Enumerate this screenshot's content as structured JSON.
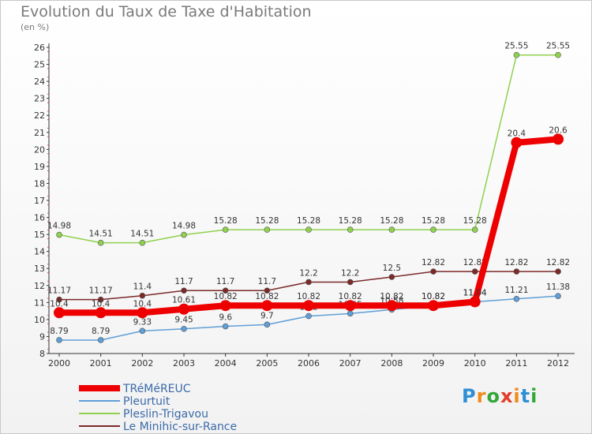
{
  "title": "Evolution du Taux de Taxe d'Habitation",
  "subtitle": "(en %)",
  "brand": {
    "text": "Proxiti",
    "colors": [
      "#2f8fd6",
      "#f08a1c",
      "#35a63a",
      "#e23d28",
      "#f08a1c",
      "#2f8fd6",
      "#35a63a"
    ]
  },
  "chart_data": {
    "type": "line",
    "x": [
      "2000",
      "2001",
      "2002",
      "2003",
      "2004",
      "2005",
      "2006",
      "2007",
      "2008",
      "2009",
      "2010",
      "2011",
      "2012"
    ],
    "yticks": [
      "8",
      "9",
      "10",
      "11",
      "12",
      "13",
      "14",
      "15",
      "16",
      "17",
      "18",
      "19",
      "20",
      "21",
      "22",
      "23",
      "24",
      "25",
      "26"
    ],
    "ylim": [
      8,
      26
    ],
    "grid": false,
    "legend_position": "bottom-left",
    "series": [
      {
        "name": "Pleslin-Trigavou",
        "color": "#8fd14f",
        "values": [
          14.98,
          14.51,
          14.51,
          14.98,
          15.28,
          15.28,
          15.28,
          15.28,
          15.28,
          15.28,
          15.28,
          25.55,
          25.55
        ],
        "labels": [
          "14.98",
          "14.51",
          "14.51",
          "14.98",
          "15.28",
          "15.28",
          "15.28",
          "15.28",
          "15.28",
          "15.28",
          "15.28",
          "25.55",
          "25.55"
        ]
      },
      {
        "name": "Le Minihic-sur-Rance",
        "color": "#7b2a2a",
        "values": [
          11.17,
          11.17,
          11.4,
          11.7,
          11.7,
          11.7,
          12.2,
          12.2,
          12.5,
          12.82,
          12.82,
          12.82,
          12.82
        ],
        "labels": [
          "11.17",
          "11.17",
          "11.4",
          "11.7",
          "11.7",
          "11.7",
          "12.2",
          "12.2",
          "12.5",
          "12.82",
          "12.82",
          "12.82",
          "12.82"
        ]
      },
      {
        "name": "Pleurtuit",
        "color": "#5f9fd6",
        "values": [
          8.79,
          8.79,
          9.33,
          9.45,
          9.6,
          9.7,
          10.2,
          10.35,
          10.58,
          10.82,
          11.04,
          11.21,
          11.38
        ],
        "labels": [
          "8.79",
          "8.79",
          "9.33",
          "9.45",
          "9.6",
          "9.7",
          "10.2",
          "10.35",
          "10.58",
          "10.82",
          "11.04",
          "11.21",
          "11.38"
        ]
      },
      {
        "name": "TRéMéREUC",
        "color": "#ee0000",
        "values": [
          10.4,
          10.4,
          10.4,
          10.61,
          10.82,
          10.82,
          10.82,
          10.82,
          10.82,
          10.82,
          11.04,
          20.4,
          20.6
        ],
        "labels": [
          "10.4",
          "10.4",
          "10.4",
          "10.61",
          "10.82",
          "10.82",
          "10.82",
          "10.82",
          "10.82",
          "10.82",
          "11.04",
          "20.4",
          "20.6"
        ]
      }
    ],
    "legend": [
      "TRéMéREUC",
      "Pleurtuit",
      "Pleslin-Trigavou",
      "Le Minihic-sur-Rance"
    ]
  }
}
